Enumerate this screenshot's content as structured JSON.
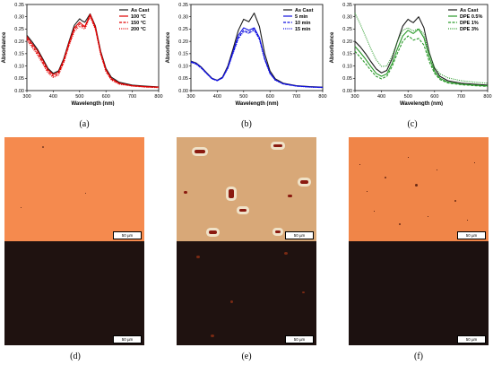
{
  "chart_data": [
    {
      "type": "line",
      "panel": "(a)",
      "xlabel": "Wavelength (nm)",
      "ylabel": "Absorbance",
      "xlim": [
        300,
        800
      ],
      "ylim": [
        0,
        0.35
      ],
      "xticks": [
        300,
        400,
        500,
        600,
        700,
        800
      ],
      "yticks": [
        0.0,
        0.05,
        0.1,
        0.15,
        0.2,
        0.25,
        0.3,
        0.35
      ],
      "legend_position": "top-right",
      "x": [
        300,
        320,
        340,
        360,
        380,
        400,
        420,
        440,
        460,
        480,
        500,
        510,
        520,
        540,
        560,
        580,
        600,
        620,
        650,
        700,
        750,
        800
      ],
      "series": [
        {
          "name": "As Cast",
          "color": "#1a1a1a",
          "dash": "solid",
          "values": [
            0.225,
            0.198,
            0.168,
            0.13,
            0.09,
            0.07,
            0.08,
            0.13,
            0.2,
            0.265,
            0.292,
            0.283,
            0.278,
            0.312,
            0.262,
            0.16,
            0.09,
            0.055,
            0.034,
            0.022,
            0.018,
            0.015
          ]
        },
        {
          "name": "100 °C",
          "color": "#e00000",
          "dash": "solid",
          "values": [
            0.22,
            0.19,
            0.162,
            0.124,
            0.085,
            0.065,
            0.075,
            0.125,
            0.195,
            0.255,
            0.278,
            0.268,
            0.26,
            0.31,
            0.258,
            0.155,
            0.085,
            0.05,
            0.03,
            0.02,
            0.016,
            0.014
          ]
        },
        {
          "name": "150 °C",
          "color": "#e00000",
          "dash": "dash",
          "values": [
            0.212,
            0.182,
            0.152,
            0.115,
            0.078,
            0.058,
            0.068,
            0.118,
            0.188,
            0.248,
            0.27,
            0.262,
            0.256,
            0.305,
            0.252,
            0.15,
            0.08,
            0.046,
            0.028,
            0.019,
            0.015,
            0.013
          ]
        },
        {
          "name": "200 °C",
          "color": "#e00000",
          "dash": "dot",
          "values": [
            0.205,
            0.175,
            0.145,
            0.108,
            0.072,
            0.053,
            0.063,
            0.112,
            0.182,
            0.24,
            0.262,
            0.255,
            0.25,
            0.3,
            0.248,
            0.146,
            0.076,
            0.043,
            0.026,
            0.018,
            0.014,
            0.012
          ]
        }
      ]
    },
    {
      "type": "line",
      "panel": "(b)",
      "xlabel": "Wavelength (nm)",
      "ylabel": "Absorbance",
      "xlim": [
        300,
        800
      ],
      "ylim": [
        0,
        0.35
      ],
      "xticks": [
        300,
        400,
        500,
        600,
        700,
        800
      ],
      "yticks": [
        0.0,
        0.05,
        0.1,
        0.15,
        0.2,
        0.25,
        0.3,
        0.35
      ],
      "legend_position": "top-right",
      "x": [
        300,
        320,
        340,
        360,
        380,
        400,
        420,
        440,
        460,
        480,
        500,
        510,
        520,
        540,
        560,
        580,
        600,
        620,
        650,
        700,
        750,
        800
      ],
      "series": [
        {
          "name": "As Cast",
          "color": "#1a1a1a",
          "dash": "solid",
          "values": [
            0.12,
            0.112,
            0.095,
            0.072,
            0.05,
            0.042,
            0.055,
            0.1,
            0.17,
            0.245,
            0.29,
            0.285,
            0.28,
            0.315,
            0.26,
            0.15,
            0.08,
            0.048,
            0.03,
            0.02,
            0.016,
            0.014
          ]
        },
        {
          "name": "5 min",
          "color": "#1010e0",
          "dash": "solid",
          "values": [
            0.118,
            0.11,
            0.093,
            0.07,
            0.049,
            0.041,
            0.053,
            0.095,
            0.16,
            0.225,
            0.255,
            0.25,
            0.245,
            0.255,
            0.215,
            0.13,
            0.072,
            0.044,
            0.028,
            0.019,
            0.015,
            0.013
          ]
        },
        {
          "name": "10 min",
          "color": "#1010e0",
          "dash": "dash",
          "values": [
            0.116,
            0.108,
            0.091,
            0.069,
            0.048,
            0.04,
            0.052,
            0.092,
            0.155,
            0.215,
            0.245,
            0.24,
            0.236,
            0.25,
            0.21,
            0.127,
            0.07,
            0.043,
            0.027,
            0.018,
            0.015,
            0.013
          ]
        },
        {
          "name": "15 min",
          "color": "#1010e0",
          "dash": "dot",
          "values": [
            0.115,
            0.107,
            0.09,
            0.068,
            0.047,
            0.04,
            0.051,
            0.09,
            0.15,
            0.21,
            0.24,
            0.236,
            0.232,
            0.245,
            0.206,
            0.125,
            0.069,
            0.042,
            0.027,
            0.018,
            0.014,
            0.012
          ]
        }
      ]
    },
    {
      "type": "line",
      "panel": "(c)",
      "xlabel": "Wavelength (nm)",
      "ylabel": "Absorbance",
      "xlim": [
        300,
        800
      ],
      "ylim": [
        0,
        0.35
      ],
      "xticks": [
        300,
        400,
        500,
        600,
        700,
        800
      ],
      "yticks": [
        0.0,
        0.05,
        0.1,
        0.15,
        0.2,
        0.25,
        0.3,
        0.35
      ],
      "legend_position": "top-right",
      "x": [
        300,
        320,
        340,
        360,
        380,
        400,
        420,
        440,
        460,
        480,
        500,
        510,
        520,
        540,
        560,
        580,
        600,
        620,
        650,
        700,
        750,
        800
      ],
      "series": [
        {
          "name": "As Cast",
          "color": "#1a1a1a",
          "dash": "solid",
          "values": [
            0.2,
            0.178,
            0.15,
            0.118,
            0.088,
            0.072,
            0.082,
            0.13,
            0.2,
            0.262,
            0.29,
            0.282,
            0.276,
            0.3,
            0.255,
            0.155,
            0.09,
            0.058,
            0.04,
            0.03,
            0.026,
            0.022
          ]
        },
        {
          "name": "DPE 0.5%",
          "color": "#2a9a2a",
          "dash": "solid",
          "values": [
            0.18,
            0.155,
            0.128,
            0.098,
            0.07,
            0.058,
            0.068,
            0.11,
            0.17,
            0.222,
            0.245,
            0.238,
            0.232,
            0.25,
            0.215,
            0.135,
            0.078,
            0.05,
            0.034,
            0.026,
            0.022,
            0.019
          ]
        },
        {
          "name": "DPE 1%",
          "color": "#2a9a2a",
          "dash": "dash",
          "values": [
            0.16,
            0.135,
            0.11,
            0.082,
            0.058,
            0.048,
            0.058,
            0.098,
            0.152,
            0.2,
            0.222,
            0.215,
            0.205,
            0.212,
            0.185,
            0.118,
            0.07,
            0.045,
            0.031,
            0.024,
            0.02,
            0.017
          ]
        },
        {
          "name": "DPE 3%",
          "color": "#2a9a2a",
          "dash": "dot",
          "values": [
            0.315,
            0.27,
            0.22,
            0.17,
            0.125,
            0.098,
            0.1,
            0.14,
            0.2,
            0.245,
            0.255,
            0.248,
            0.242,
            0.252,
            0.23,
            0.15,
            0.095,
            0.068,
            0.052,
            0.04,
            0.034,
            0.03
          ]
        }
      ]
    }
  ],
  "figure": {
    "panel_labels": [
      "(a)",
      "(b)",
      "(c)",
      "(d)",
      "(e)",
      "(f)"
    ],
    "scale_bar_label": "50 µm",
    "micrograph_colors": {
      "bright_field": "#f58a4e",
      "bright_field_e": "#d8a878",
      "dark_field": "#1f1210"
    }
  }
}
